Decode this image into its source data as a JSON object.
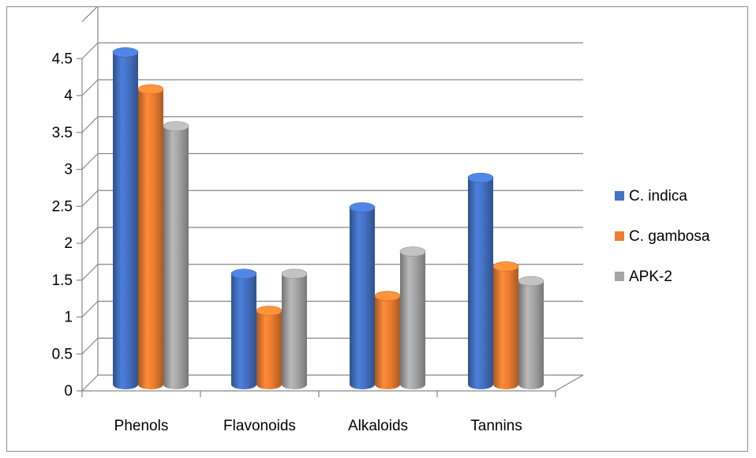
{
  "chart_data": {
    "type": "bar",
    "style": "3d-cylinder",
    "title": "",
    "xlabel": "",
    "ylabel": "",
    "categories": [
      "Phenols",
      "Flavonoids",
      "Alkaloids",
      "Tannins"
    ],
    "series": [
      {
        "name": "C. indica",
        "color": "#4472C4",
        "values": [
          4.5,
          1.5,
          2.4,
          2.8
        ]
      },
      {
        "name": "C. gambosa",
        "color": "#ED7D31",
        "values": [
          4.0,
          1.0,
          1.2,
          1.6
        ]
      },
      {
        "name": "APK-2",
        "color": "#A5A5A5",
        "values": [
          3.5,
          1.5,
          1.8,
          1.4
        ]
      }
    ],
    "yticks": [
      "0",
      "0.5",
      "1",
      "1.5",
      "2",
      "2.5",
      "3",
      "3.5",
      "4",
      "4.5"
    ],
    "ylim": [
      0,
      5
    ],
    "grid": true,
    "legend_position": "right"
  }
}
